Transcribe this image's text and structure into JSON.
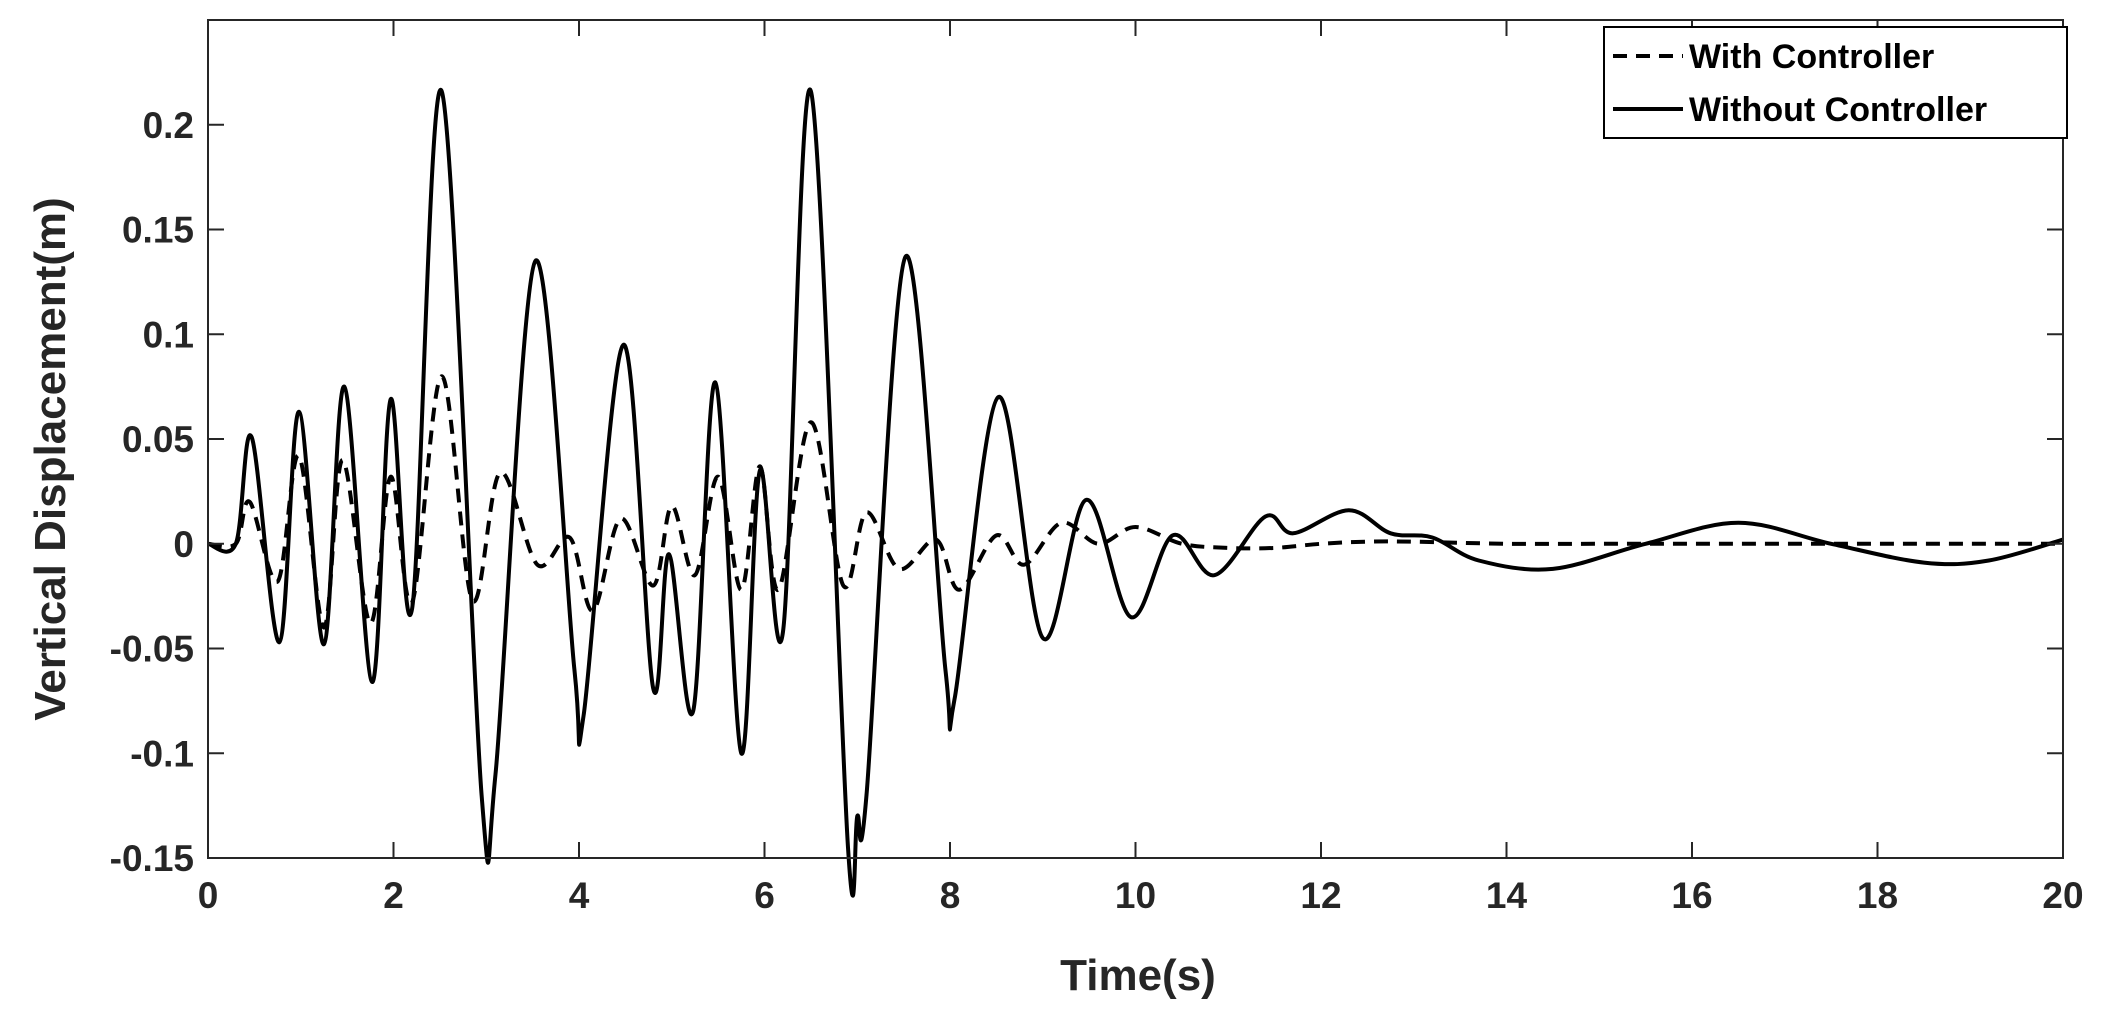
{
  "chart_data": {
    "type": "line",
    "xlabel": "Time(s)",
    "ylabel": "Vertical Displacement(m)",
    "xlim": [
      0,
      20
    ],
    "ylim": [
      -0.15,
      0.25
    ],
    "xticks": [
      0,
      2,
      4,
      6,
      8,
      10,
      12,
      14,
      16,
      18,
      20
    ],
    "xtick_labels": [
      "0",
      "2",
      "4",
      "6",
      "8",
      "10",
      "12",
      "14",
      "16",
      "18",
      "20"
    ],
    "yticks": [
      -0.15,
      -0.1,
      -0.05,
      0,
      0.05,
      0.1,
      0.15,
      0.2
    ],
    "ytick_labels": [
      "-0.15",
      "-0.1",
      "-0.05",
      "0",
      "0.05",
      "0.1",
      "0.15",
      "0.2"
    ],
    "grid": false,
    "legend_position": "top-right",
    "series": [
      {
        "name": "With Controller",
        "style": "dashed",
        "color": "#000000",
        "x": [
          0,
          0.3,
          0.45,
          0.75,
          0.98,
          1.25,
          1.45,
          1.75,
          1.97,
          2.2,
          2.52,
          2.85,
          3.15,
          3.55,
          3.9,
          4.15,
          4.45,
          4.8,
          5.0,
          5.25,
          5.5,
          5.75,
          5.95,
          6.15,
          6.5,
          6.85,
          7.1,
          7.45,
          7.85,
          8.1,
          8.5,
          8.8,
          9.2,
          9.6,
          10.0,
          10.5,
          11.0,
          11.5,
          12.0,
          12.5,
          13.0,
          14.0,
          15.0,
          16.0,
          17.0,
          18.0,
          19.0,
          20.0
        ],
        "y": [
          0,
          0,
          0.02,
          -0.018,
          0.042,
          -0.04,
          0.04,
          -0.038,
          0.032,
          -0.028,
          0.08,
          -0.027,
          0.034,
          -0.01,
          0.003,
          -0.032,
          0.012,
          -0.02,
          0.018,
          -0.015,
          0.032,
          -0.022,
          0.037,
          -0.022,
          0.058,
          -0.02,
          0.015,
          -0.012,
          0.002,
          -0.022,
          0.004,
          -0.01,
          0.01,
          0.0,
          0.008,
          0.0,
          -0.002,
          -0.002,
          0.0,
          0.001,
          0.001,
          0.0,
          0.0,
          0.0,
          0.0,
          0.0,
          0.0,
          0.0
        ]
      },
      {
        "name": "Without Controller",
        "style": "solid",
        "color": "#000000",
        "x": [
          0,
          0.3,
          0.47,
          0.77,
          0.98,
          1.25,
          1.47,
          1.77,
          1.97,
          2.2,
          2.52,
          2.95,
          3.1,
          3.53,
          3.95,
          4.05,
          4.48,
          4.8,
          4.97,
          5.23,
          5.47,
          5.75,
          5.95,
          6.2,
          6.5,
          6.9,
          7.0,
          7.1,
          7.52,
          7.95,
          8.05,
          8.52,
          9.0,
          9.47,
          9.95,
          10.4,
          10.85,
          11.4,
          11.7,
          12.3,
          12.75,
          13.2,
          13.7,
          14.5,
          15.5,
          16.5,
          17.5,
          18.5,
          19.2,
          20.0
        ],
        "y": [
          0,
          0,
          0.051,
          -0.047,
          0.063,
          -0.048,
          0.075,
          -0.066,
          0.069,
          -0.031,
          0.216,
          -0.12,
          -0.11,
          0.135,
          -0.06,
          -0.082,
          0.095,
          -0.069,
          -0.005,
          -0.08,
          0.077,
          -0.1,
          0.035,
          -0.042,
          0.216,
          -0.145,
          -0.13,
          -0.12,
          0.137,
          -0.06,
          -0.074,
          0.07,
          -0.045,
          0.021,
          -0.035,
          0.004,
          -0.015,
          0.013,
          0.005,
          0.016,
          0.005,
          0.003,
          -0.008,
          -0.012,
          0.0,
          0.01,
          0.0,
          -0.009,
          -0.008,
          0.002
        ]
      }
    ]
  }
}
